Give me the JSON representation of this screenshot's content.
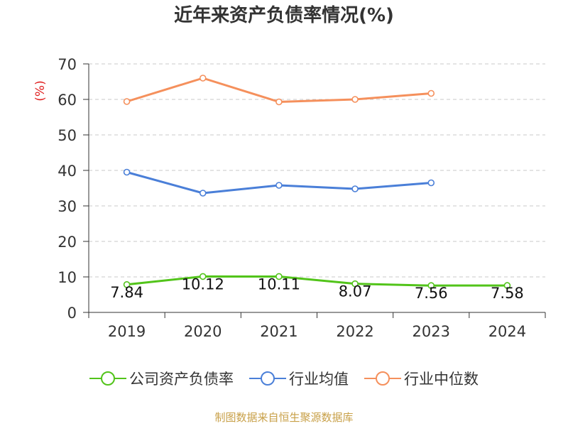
{
  "chart_data": {
    "type": "line",
    "title": "近年来资产负债率情况(%)",
    "ylabel": "(%)",
    "xlabel": "",
    "categories": [
      "2019",
      "2020",
      "2021",
      "2022",
      "2023",
      "2024"
    ],
    "ylim": [
      0,
      70
    ],
    "yticks": [
      0,
      10,
      20,
      30,
      40,
      50,
      60,
      70
    ],
    "grid": true,
    "legend_position": "bottom",
    "series": [
      {
        "name": "公司资产负债率",
        "color": "#52c41a",
        "values": [
          7.84,
          10.12,
          10.11,
          8.07,
          7.56,
          7.58
        ],
        "labels": [
          "7.84",
          "10.12",
          "10.11",
          "8.07",
          "7.56",
          "7.58"
        ]
      },
      {
        "name": "行业均值",
        "color": "#4a7fd8",
        "values": [
          39.5,
          33.6,
          35.8,
          34.8,
          36.5,
          null
        ]
      },
      {
        "name": "行业中位数",
        "color": "#f5905c",
        "values": [
          59.4,
          66.0,
          59.3,
          60.0,
          61.7,
          null
        ]
      }
    ]
  },
  "footer": {
    "source": "制图数据来自恒生聚源数据库",
    "source_color": "#c8a048"
  },
  "colors": {
    "axis": "#333333",
    "grid": "#c8c8c8",
    "ylabel": "#e02020"
  }
}
